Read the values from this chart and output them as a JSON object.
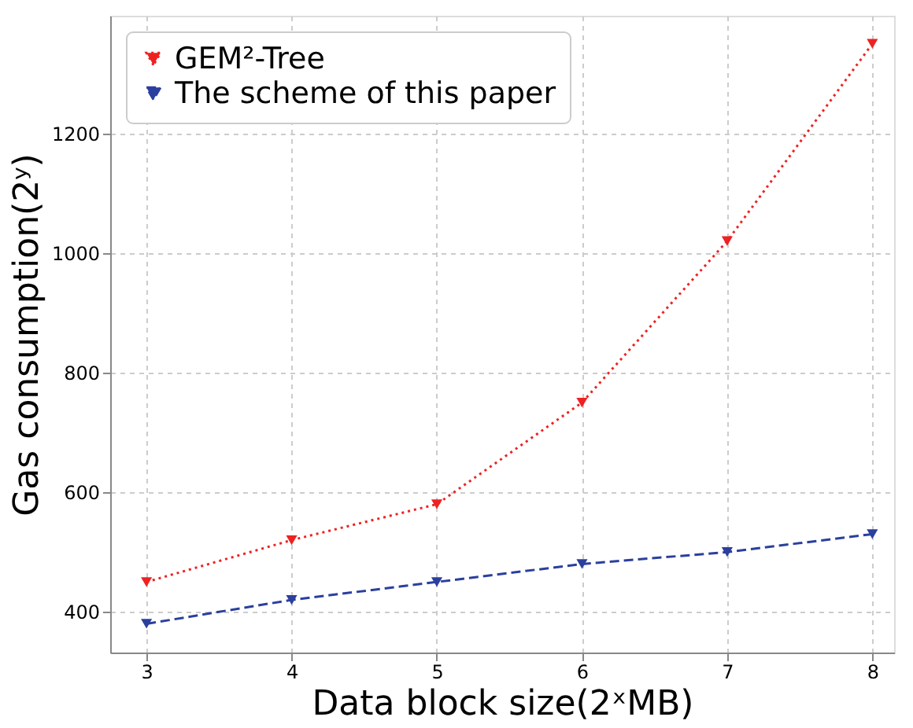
{
  "chart_data": {
    "type": "line",
    "xlabel": "Data block size(2ˣMB)",
    "ylabel": "Gas consumption(2ʸ)",
    "x": [
      3,
      4,
      5,
      6,
      7,
      8
    ],
    "series": [
      {
        "name": "GEM²-Tree",
        "color": "#ee2222",
        "line_style": "dotted",
        "values": [
          450,
          520,
          580,
          750,
          1020,
          1350
        ]
      },
      {
        "name": "The scheme of this paper",
        "color": "#2b3f9e",
        "line_style": "dashed",
        "values": [
          380,
          420,
          450,
          480,
          500,
          530
        ]
      }
    ],
    "xlim": [
      2.75,
      8.15
    ],
    "xticks": [
      3,
      4,
      5,
      6,
      7,
      8
    ],
    "ylim": [
      332,
      1397
    ],
    "yticks": [
      400,
      600,
      800,
      1000,
      1200
    ],
    "grid": true,
    "legend": "top left",
    "marker": "triangle"
  }
}
